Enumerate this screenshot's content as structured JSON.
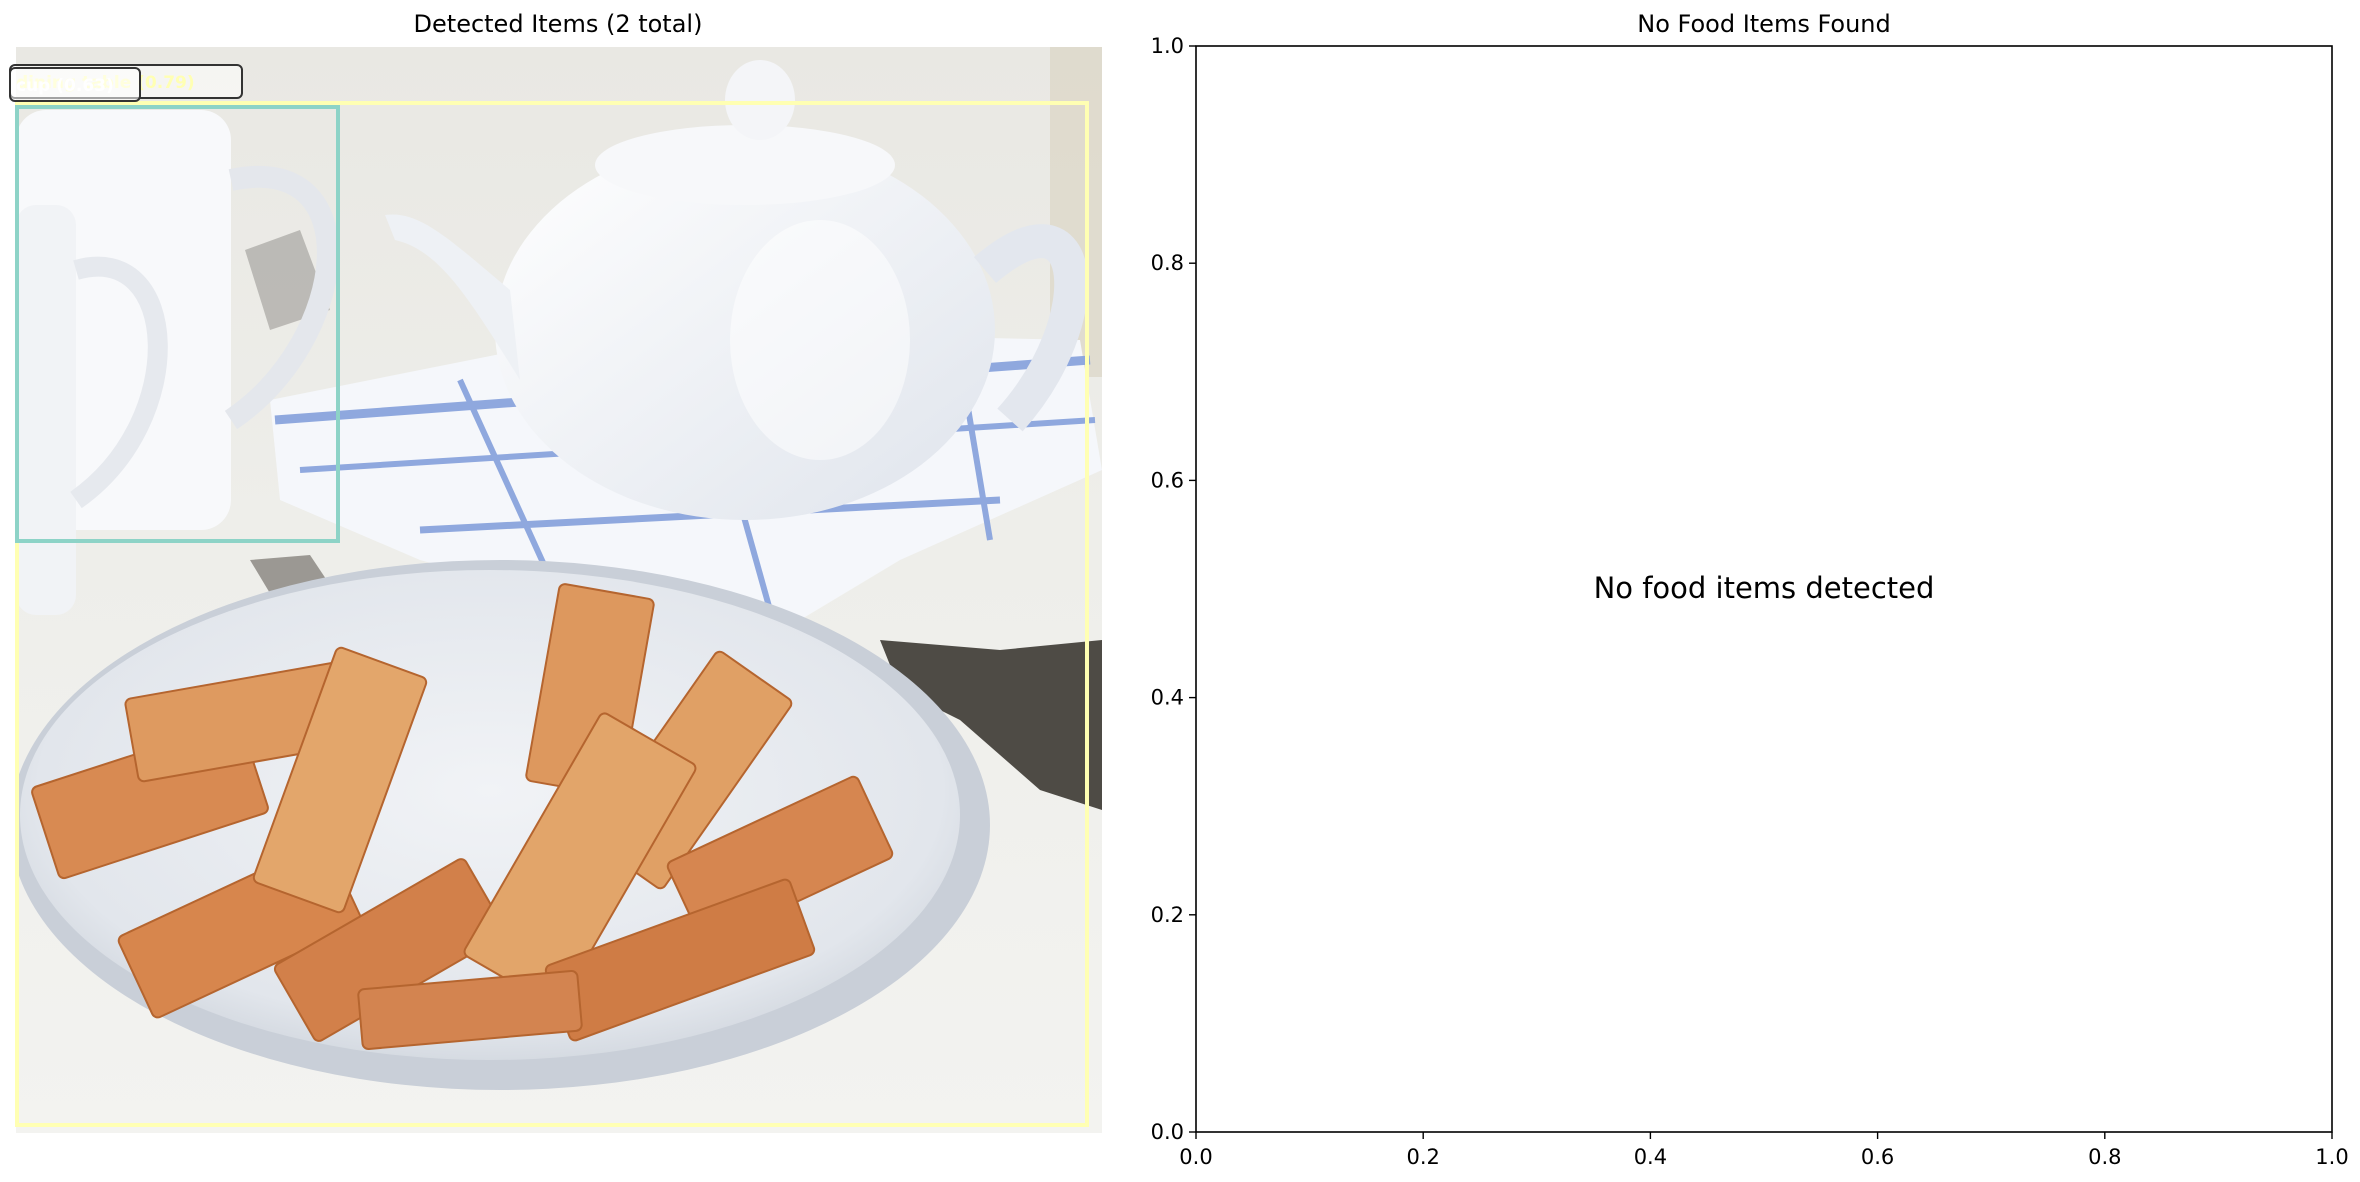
{
  "chart_data": [
    {
      "type": "image",
      "title": "Detected Items (2 total)",
      "detections": [
        {
          "name": "dining table (0.79)",
          "label": "dining table (0.79)",
          "color": "#ffffb3"
        },
        {
          "name": "cup (0.63)",
          "label": "cup (0.63)",
          "color": "#8dd3c7"
        }
      ]
    },
    {
      "type": "scatter",
      "title": "No Food Items Found",
      "message": "No food items detected",
      "xlim": [
        0,
        1
      ],
      "ylim": [
        0,
        1
      ],
      "xticks": [
        "0.0",
        "0.2",
        "0.4",
        "0.6",
        "0.8",
        "1.0"
      ],
      "yticks": [
        "0.0",
        "0.2",
        "0.4",
        "0.6",
        "0.8",
        "1.0"
      ],
      "grid": false
    }
  ]
}
